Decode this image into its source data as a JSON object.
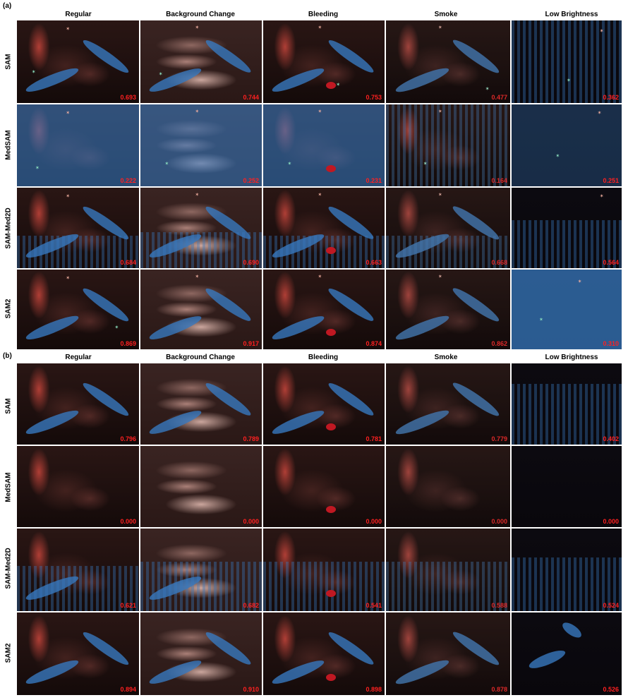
{
  "panels": [
    {
      "label": "(a)",
      "columns": [
        "Regular",
        "Background Change",
        "Bleeding",
        "Smoke",
        "Low Brightness"
      ],
      "rows": [
        {
          "model": "SAM",
          "scores": [
            "0.693",
            "0.744",
            "0.753",
            "0.477",
            "0.362"
          ]
        },
        {
          "model": "MedSAM",
          "scores": [
            "0.222",
            "0.252",
            "0.231",
            "0.164",
            "0.251"
          ]
        },
        {
          "model": "SAM-Med2D",
          "scores": [
            "0.684",
            "0.690",
            "0.663",
            "0.668",
            "0.564"
          ]
        },
        {
          "model": "SAM2",
          "scores": [
            "0.869",
            "0.917",
            "0.874",
            "0.862",
            "0.310"
          ]
        }
      ]
    },
    {
      "label": "(b)",
      "columns": [
        "Regular",
        "Background Change",
        "Bleeding",
        "Smoke",
        "Low Brightness"
      ],
      "rows": [
        {
          "model": "SAM",
          "scores": [
            "0.796",
            "0.789",
            "0.781",
            "0.779",
            "0.402"
          ]
        },
        {
          "model": "MedSAM",
          "scores": [
            "0.000",
            "0.000",
            "0.000",
            "0.000",
            "0.000"
          ]
        },
        {
          "model": "SAM-Med2D",
          "scores": [
            "0.621",
            "0.682",
            "0.541",
            "0.588",
            "0.524"
          ]
        },
        {
          "model": "SAM2",
          "scores": [
            "0.894",
            "0.910",
            "0.898",
            "0.878",
            "0.526"
          ]
        }
      ]
    }
  ],
  "colors": {
    "mask": "#3778be",
    "score_text": "#ff2020",
    "positive_point": "#8ee6c2",
    "negative_point": "#f3b0a0"
  }
}
